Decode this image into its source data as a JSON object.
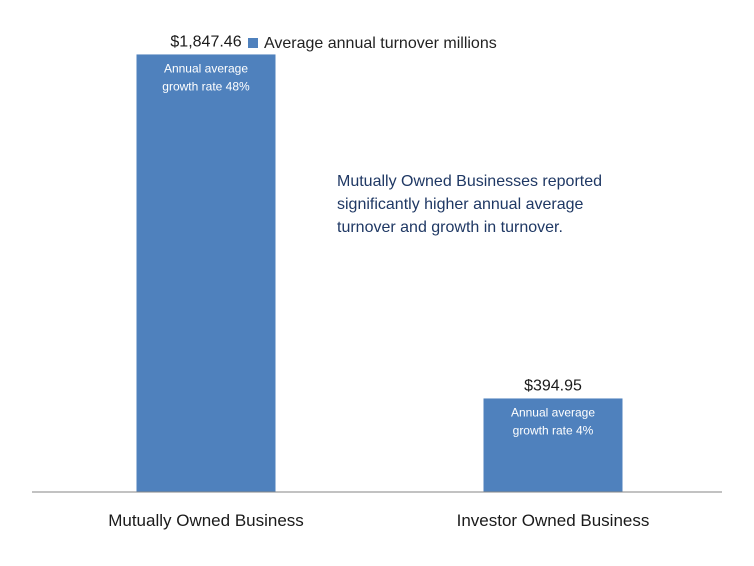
{
  "chart_data": {
    "type": "bar",
    "categories": [
      "Mutually Owned Business",
      "Investor Owned Business"
    ],
    "series": [
      {
        "name": "Average annual turnover millions",
        "values": [
          1847.46,
          394.95
        ]
      }
    ],
    "value_labels": [
      "$1,847.46",
      "$394.95"
    ],
    "bar_notes": [
      [
        "Annual average",
        "growth rate 48%"
      ],
      [
        "Annual average",
        "growth rate  4%"
      ]
    ],
    "annotation": [
      "Mutually Owned Businesses reported",
      "significantly higher annual average",
      "turnover and growth in turnover."
    ],
    "ylim": [
      0,
      1900
    ],
    "grid": false,
    "legend_position": "top",
    "colors": {
      "bar": "#4f81bd",
      "axis": "#868686"
    }
  }
}
